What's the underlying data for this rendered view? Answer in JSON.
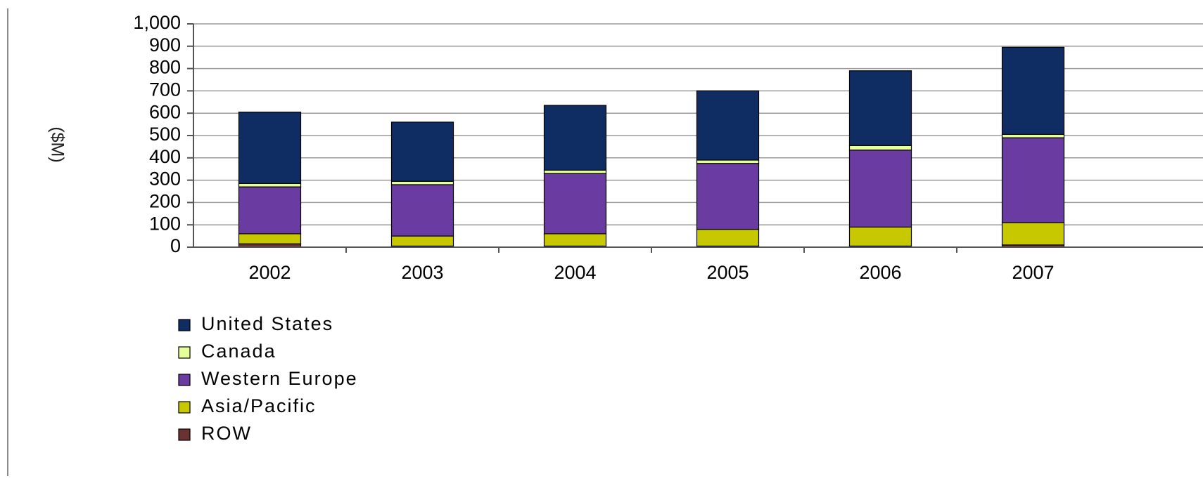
{
  "chart_data": {
    "type": "bar",
    "stacked": true,
    "ylabel": "($M)",
    "xlabel": "",
    "title": "",
    "ylim": [
      0,
      1000
    ],
    "yticks": [
      "0",
      "100",
      "200",
      "300",
      "400",
      "500",
      "600",
      "700",
      "800",
      "900",
      "1,000"
    ],
    "grid": true,
    "legend_position": "bottom-left",
    "categories": [
      "2002",
      "2003",
      "2004",
      "2005",
      "2006",
      "2007"
    ],
    "series": [
      {
        "name": "ROW",
        "color": "#6b3232",
        "values": [
          15,
          5,
          5,
          5,
          5,
          10
        ]
      },
      {
        "name": "Asia/Pacific",
        "color": "#c8c800",
        "values": [
          45,
          45,
          55,
          75,
          85,
          100
        ]
      },
      {
        "name": "Western Europe",
        "color": "#6a3ba0",
        "values": [
          210,
          230,
          270,
          295,
          345,
          380
        ]
      },
      {
        "name": "Canada",
        "color": "#e5ff99",
        "values": [
          15,
          15,
          15,
          15,
          20,
          15
        ]
      },
      {
        "name": "United States",
        "color": "#0f2d63",
        "values": [
          320,
          265,
          290,
          310,
          335,
          390
        ]
      }
    ],
    "legend_order": [
      "United States",
      "Canada",
      "Western Europe",
      "Asia/Pacific",
      "ROW"
    ]
  }
}
